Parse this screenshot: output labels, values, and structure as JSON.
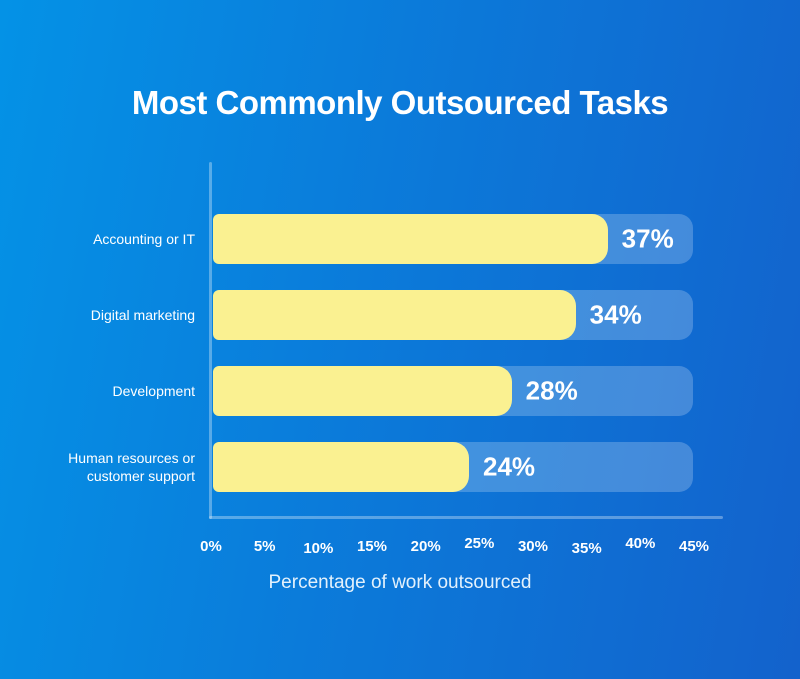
{
  "page": {
    "title": "Most Commonly Outsourced Tasks"
  },
  "chart_data": {
    "type": "bar",
    "orientation": "horizontal",
    "title": "Most Commonly Outsourced Tasks",
    "categories": [
      "Accounting or IT",
      "Digital marketing",
      "Development",
      "Human resources or customer support"
    ],
    "values": [
      37,
      34,
      28,
      24
    ],
    "value_labels": [
      "37%",
      "34%",
      "28%",
      "24%"
    ],
    "xlabel": "Percentage of work outsourced",
    "ylabel": "",
    "xlim": [
      0,
      45
    ],
    "xticks": [
      "0%",
      "5%",
      "10%",
      "15%",
      "20%",
      "25%",
      "30%",
      "35%",
      "40%",
      "45%"
    ],
    "track_max_percent": 45,
    "grid": false,
    "legend": null,
    "colors": {
      "bar_fill": "#FAF191",
      "track_fill": "rgba(255,255,255,0.22)",
      "background_gradient_left": "#0492E6",
      "background_gradient_right": "#1362CC",
      "axis_line": "rgba(255,255,255,0.32)",
      "text": "#FFFFFF"
    }
  }
}
